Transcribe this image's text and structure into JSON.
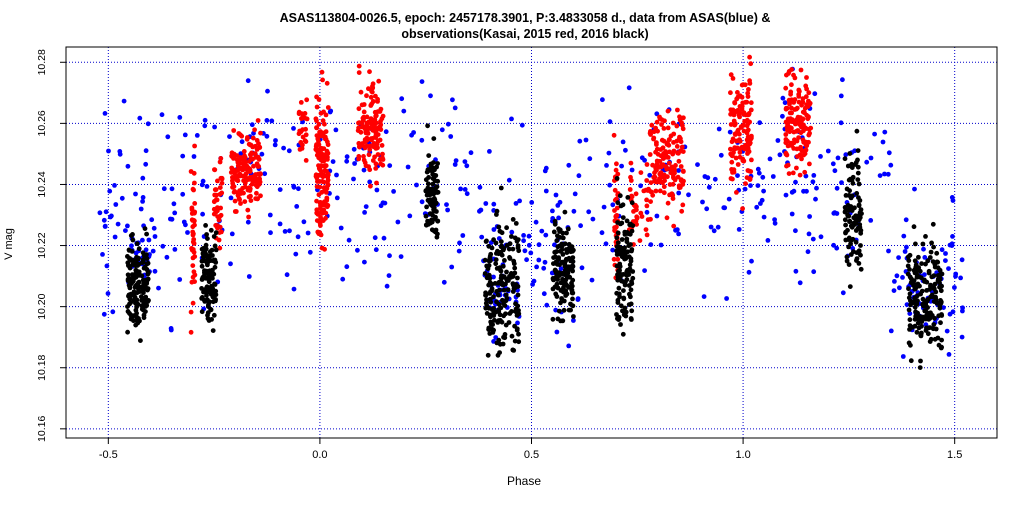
{
  "chart_data": {
    "type": "scatter",
    "title_line1": "ASAS113804-0026.5, epoch: 2457178.3901, P:3.4833058 d., data from ASAS(blue) &",
    "title_line2": "observations(Kasai, 2015 red, 2016 black)",
    "xlabel": "Phase",
    "ylabel": "V mag",
    "xlim": [
      -0.6,
      1.6
    ],
    "ylim": [
      10.285,
      10.157
    ],
    "x_ticks": [
      -0.5,
      0.0,
      0.5,
      1.0,
      1.5
    ],
    "x_tick_labels": [
      "-0.5",
      "0.0",
      "0.5",
      "1.0",
      "1.5"
    ],
    "y_ticks": [
      10.16,
      10.18,
      10.2,
      10.22,
      10.24,
      10.26,
      10.28
    ],
    "y_tick_labels": [
      "10.16",
      "10.18",
      "10.20",
      "10.22",
      "10.24",
      "10.26",
      "10.28"
    ],
    "grid": true,
    "grid_color": "#0000cc",
    "series": [
      {
        "color": "#0000ff",
        "clusters": [
          {
            "x": [
              -0.52,
              -0.35
            ],
            "y": [
              10.175,
              10.285
            ],
            "n": 60
          },
          {
            "x": [
              -0.35,
              0.38
            ],
            "y": [
              10.195,
              10.285
            ],
            "n": 170
          },
          {
            "x": [
              0.38,
              0.62
            ],
            "y": [
              10.175,
              10.265
            ],
            "n": 90
          },
          {
            "x": [
              0.62,
              1.35
            ],
            "y": [
              10.195,
              10.285
            ],
            "n": 170
          },
          {
            "x": [
              1.35,
              1.52
            ],
            "y": [
              10.17,
              10.25
            ],
            "n": 55
          },
          {
            "x": [
              -0.45,
              -0.4
            ],
            "y": [
              10.205,
              10.225
            ],
            "n": 20
          },
          {
            "x": [
              0.41,
              0.47
            ],
            "y": [
              10.195,
              10.215
            ],
            "n": 20
          },
          {
            "x": [
              1.39,
              1.46
            ],
            "y": [
              10.19,
              10.22
            ],
            "n": 20
          }
        ]
      },
      {
        "color": "#ff0000",
        "clusters": [
          {
            "x": [
              -0.305,
              -0.295
            ],
            "y": [
              10.182,
              10.265
            ],
            "n": 40
          },
          {
            "x": [
              -0.25,
              -0.23
            ],
            "y": [
              10.21,
              10.255
            ],
            "n": 40
          },
          {
            "x": [
              -0.21,
              -0.14
            ],
            "y": [
              10.225,
              10.265
            ],
            "n": 160
          },
          {
            "x": [
              -0.05,
              -0.03
            ],
            "y": [
              10.245,
              10.275
            ],
            "n": 25
          },
          {
            "x": [
              -0.01,
              0.02
            ],
            "y": [
              10.21,
              10.282
            ],
            "n": 140
          },
          {
            "x": [
              0.09,
              0.15
            ],
            "y": [
              10.235,
              10.282
            ],
            "n": 130
          },
          {
            "x": [
              0.695,
              0.705
            ],
            "y": [
              10.2,
              10.26
            ],
            "n": 35
          },
          {
            "x": [
              0.78,
              0.86
            ],
            "y": [
              10.225,
              10.27
            ],
            "n": 150
          },
          {
            "x": [
              0.97,
              1.02
            ],
            "y": [
              10.23,
              10.285
            ],
            "n": 130
          },
          {
            "x": [
              1.1,
              1.16
            ],
            "y": [
              10.235,
              10.285
            ],
            "n": 130
          },
          {
            "x": [
              0.73,
              0.78
            ],
            "y": [
              10.215,
              10.25
            ],
            "n": 40
          }
        ]
      },
      {
        "color": "#000000",
        "clusters": [
          {
            "x": [
              -0.455,
              -0.405
            ],
            "y": [
              10.185,
              10.23
            ],
            "n": 150
          },
          {
            "x": [
              -0.28,
              -0.245
            ],
            "y": [
              10.185,
              10.235
            ],
            "n": 120
          },
          {
            "x": [
              0.25,
              0.28
            ],
            "y": [
              10.215,
              10.26
            ],
            "n": 90
          },
          {
            "x": [
              0.39,
              0.47
            ],
            "y": [
              10.175,
              10.24
            ],
            "n": 190
          },
          {
            "x": [
              0.55,
              0.6
            ],
            "y": [
              10.19,
              10.235
            ],
            "n": 140
          },
          {
            "x": [
              0.7,
              0.74
            ],
            "y": [
              10.185,
              10.245
            ],
            "n": 120
          },
          {
            "x": [
              1.24,
              1.28
            ],
            "y": [
              10.2,
              10.265
            ],
            "n": 100
          },
          {
            "x": [
              1.39,
              1.47
            ],
            "y": [
              10.175,
              10.23
            ],
            "n": 190
          }
        ]
      }
    ]
  }
}
